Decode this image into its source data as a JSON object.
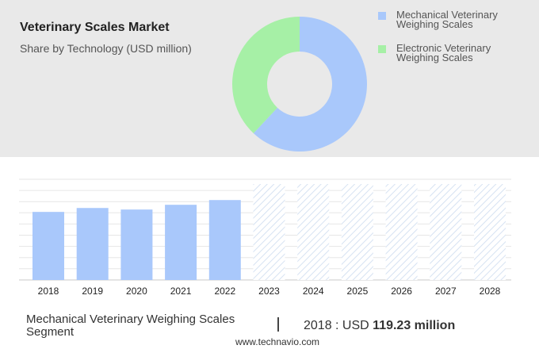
{
  "chart_data": [
    {
      "type": "pie",
      "title": "Veterinary Scales Market",
      "subtitle": "Share by Technology (USD million)",
      "categories": [
        "Mechanical Veterinary Weighing Scales",
        "Electronic Veterinary Weighing Scales"
      ],
      "values": [
        62,
        38
      ],
      "colors": [
        "#a9c8fb",
        "#a6f0a6"
      ]
    },
    {
      "type": "bar",
      "categories": [
        "2018",
        "2019",
        "2020",
        "2021",
        "2022",
        "2023",
        "2024",
        "2025",
        "2026",
        "2027",
        "2028"
      ],
      "values": [
        119.23,
        126.1,
        123.4,
        131.7,
        140.0,
        null,
        null,
        null,
        null,
        null,
        null
      ],
      "color": "#a9c8fb"
    }
  ],
  "footer": {
    "segment": "Mechanical Veterinary Weighing Scales Segment",
    "prefix": "2018 : USD",
    "value": "119.23 million",
    "source": "www.technavio.com"
  }
}
